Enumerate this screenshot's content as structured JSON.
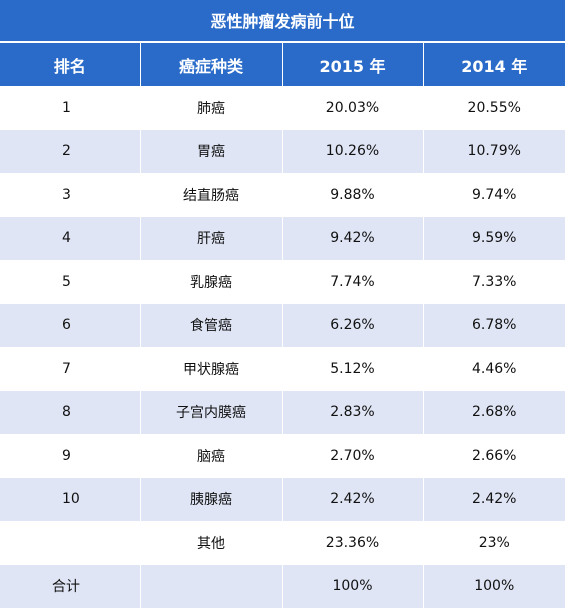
{
  "title": "恶性肿瘤发病前十位",
  "headers": [
    "排名",
    "癌症种类",
    "2015 年",
    "2014 年"
  ],
  "rows": [
    {
      "rank": "1",
      "type": "肺癌",
      "y2015": "20.03%",
      "y2014": "20.55%"
    },
    {
      "rank": "2",
      "type": "胃癌",
      "y2015": "10.26%",
      "y2014": "10.79%"
    },
    {
      "rank": "3",
      "type": "结直肠癌",
      "y2015": "9.88%",
      "y2014": "9.74%"
    },
    {
      "rank": "4",
      "type": "肝癌",
      "y2015": "9.42%",
      "y2014": "9.59%"
    },
    {
      "rank": "5",
      "type": "乳腺癌",
      "y2015": "7.74%",
      "y2014": "7.33%"
    },
    {
      "rank": "6",
      "type": "食管癌",
      "y2015": "6.26%",
      "y2014": "6.78%"
    },
    {
      "rank": "7",
      "type": "甲状腺癌",
      "y2015": "5.12%",
      "y2014": "4.46%"
    },
    {
      "rank": "8",
      "type": "子宫内膜癌",
      "y2015": "2.83%",
      "y2014": "2.68%"
    },
    {
      "rank": "9",
      "type": "脑癌",
      "y2015": "2.70%",
      "y2014": "2.66%"
    },
    {
      "rank": "10",
      "type": "胰腺癌",
      "y2015": "2.42%",
      "y2014": "2.42%"
    },
    {
      "rank": "",
      "type": "其他",
      "y2015": "23.36%",
      "y2014": "23%"
    },
    {
      "rank": "合计",
      "type": "",
      "y2015": "100%",
      "y2014": "100%"
    }
  ]
}
